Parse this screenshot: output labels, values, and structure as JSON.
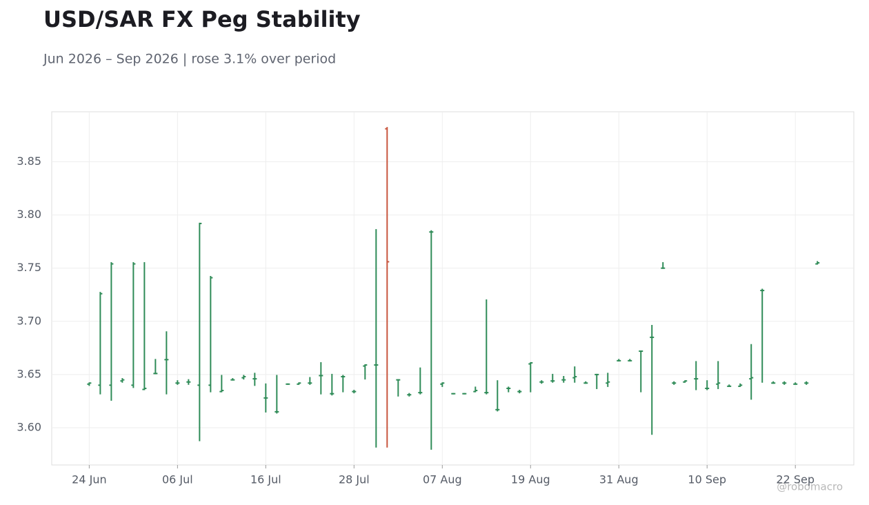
{
  "chart_data": {
    "type": "ohlc",
    "title": "USD/SAR FX Peg Stability",
    "subtitle": "Jun 2026 – Sep 2026 | rose 3.1% over period",
    "watermark": "@robomacro",
    "categories": [
      "24 Jun",
      null,
      null,
      null,
      null,
      null,
      null,
      null,
      "06 Jul",
      null,
      null,
      null,
      null,
      null,
      null,
      null,
      "16 Jul",
      null,
      null,
      null,
      null,
      null,
      null,
      null,
      "28 Jul",
      null,
      null,
      null,
      null,
      null,
      null,
      null,
      "07 Aug",
      null,
      null,
      null,
      null,
      null,
      null,
      null,
      "19 Aug",
      null,
      null,
      null,
      null,
      null,
      null,
      null,
      "31 Aug",
      null,
      null,
      null,
      null,
      null,
      null,
      null,
      "10 Sep",
      null,
      null,
      null,
      null,
      null,
      null,
      null,
      "22 Sep",
      null,
      null
    ],
    "open": [
      3.641,
      3.64,
      3.64,
      3.644,
      3.64,
      3.636,
      3.651,
      3.664,
      3.642,
      3.643,
      3.64,
      3.64,
      3.634,
      3.645,
      3.647,
      3.646,
      3.628,
      3.615,
      3.641,
      3.641,
      3.642,
      3.649,
      3.632,
      3.648,
      3.634,
      3.658,
      3.659,
      3.881,
      3.645,
      3.631,
      3.633,
      3.784,
      3.641,
      3.632,
      3.632,
      3.634,
      3.633,
      3.617,
      3.637,
      3.634,
      3.66,
      3.643,
      3.644,
      3.645,
      3.647,
      3.642,
      3.65,
      3.642,
      3.663,
      3.663,
      3.672,
      3.685,
      3.75,
      3.642,
      3.643,
      3.646,
      3.637,
      3.641,
      3.639,
      3.639,
      3.646,
      3.729,
      3.642,
      3.642,
      3.641,
      3.642,
      3.754
    ],
    "high": [
      3.642,
      3.727,
      3.755,
      3.646,
      3.755,
      3.755,
      3.664,
      3.69,
      3.644,
      3.645,
      3.792,
      3.742,
      3.649,
      3.646,
      3.649,
      3.651,
      3.641,
      3.649,
      3.641,
      3.642,
      3.647,
      3.661,
      3.65,
      3.649,
      3.635,
      3.659,
      3.786,
      3.882,
      3.645,
      3.632,
      3.656,
      3.785,
      3.642,
      3.632,
      3.632,
      3.638,
      3.72,
      3.644,
      3.638,
      3.635,
      3.661,
      3.644,
      3.65,
      3.648,
      3.657,
      3.643,
      3.65,
      3.651,
      3.664,
      3.664,
      3.672,
      3.696,
      3.755,
      3.643,
      3.644,
      3.662,
      3.644,
      3.662,
      3.64,
      3.641,
      3.678,
      3.73,
      3.643,
      3.643,
      3.642,
      3.643,
      3.756
    ],
    "low": [
      3.64,
      3.632,
      3.626,
      3.643,
      3.638,
      3.636,
      3.651,
      3.632,
      3.641,
      3.641,
      3.588,
      3.634,
      3.634,
      3.645,
      3.646,
      3.64,
      3.615,
      3.614,
      3.641,
      3.641,
      3.641,
      3.632,
      3.631,
      3.634,
      3.633,
      3.646,
      3.582,
      3.582,
      3.63,
      3.63,
      3.632,
      3.58,
      3.639,
      3.632,
      3.632,
      3.634,
      3.632,
      3.616,
      3.634,
      3.633,
      3.634,
      3.642,
      3.643,
      3.643,
      3.643,
      3.642,
      3.637,
      3.639,
      3.663,
      3.663,
      3.634,
      3.594,
      3.75,
      3.641,
      3.643,
      3.636,
      3.636,
      3.637,
      3.639,
      3.639,
      3.627,
      3.643,
      3.642,
      3.641,
      3.641,
      3.641,
      3.754
    ],
    "close": [
      3.642,
      3.726,
      3.754,
      3.645,
      3.754,
      3.637,
      3.651,
      3.664,
      3.642,
      3.643,
      3.792,
      3.741,
      3.635,
      3.645,
      3.648,
      3.646,
      3.628,
      3.615,
      3.641,
      3.642,
      3.642,
      3.649,
      3.632,
      3.648,
      3.634,
      3.659,
      3.659,
      3.756,
      3.645,
      3.631,
      3.633,
      3.784,
      3.642,
      3.632,
      3.632,
      3.635,
      3.633,
      3.617,
      3.637,
      3.634,
      3.661,
      3.643,
      3.644,
      3.645,
      3.648,
      3.642,
      3.65,
      3.643,
      3.663,
      3.663,
      3.672,
      3.685,
      3.75,
      3.642,
      3.644,
      3.646,
      3.637,
      3.642,
      3.639,
      3.64,
      3.647,
      3.729,
      3.642,
      3.642,
      3.641,
      3.642,
      3.755
    ],
    "up_color": "#2e8b57",
    "down_color": "#c8553d",
    "xlim": [
      -3.4,
      69.3
    ],
    "ylim": [
      3.565,
      3.897
    ],
    "yticks": [
      {
        "value": 3.6,
        "label": "3.60"
      },
      3.65,
      {
        "value": 3.7,
        "label": "3.70"
      },
      3.75,
      {
        "value": 3.8,
        "label": "3.80"
      },
      3.85
    ],
    "grid": true
  }
}
